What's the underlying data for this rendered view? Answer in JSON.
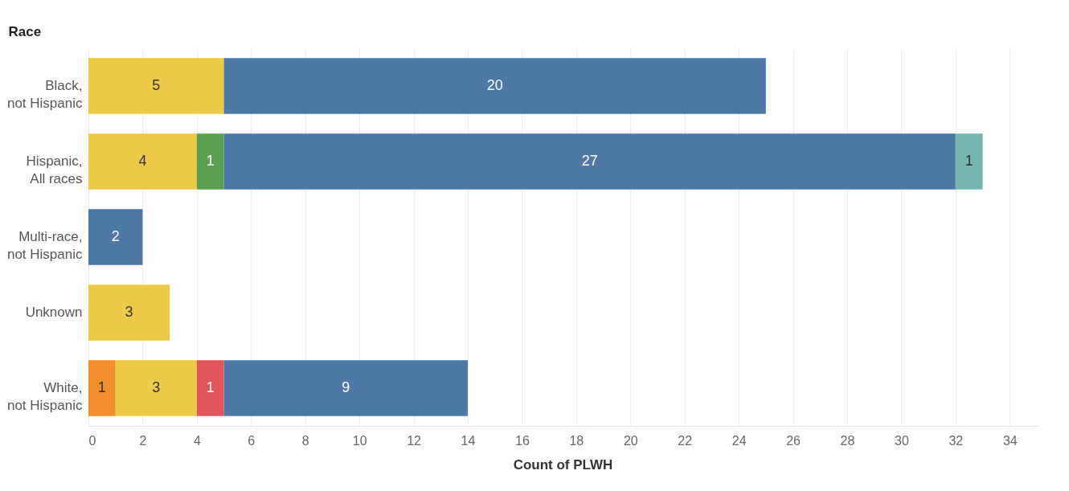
{
  "chart_data": {
    "type": "bar",
    "orientation": "horizontal",
    "stacked": true,
    "data_labels": true,
    "categories": [
      "Black, not Hispanic",
      "Hispanic, All races",
      "Multi-race, not Hispanic",
      "Unknown",
      "White, not Hispanic"
    ],
    "series": [
      {
        "color": "#f28e2b",
        "values": [
          null,
          null,
          null,
          null,
          1
        ]
      },
      {
        "color": "#edc948",
        "values": [
          5,
          4,
          null,
          3,
          3
        ]
      },
      {
        "color": "#e15759",
        "values": [
          null,
          null,
          null,
          null,
          1
        ]
      },
      {
        "color": "#59a14f",
        "values": [
          null,
          1,
          null,
          null,
          null
        ]
      },
      {
        "color": "#4e79a7",
        "values": [
          20,
          27,
          2,
          null,
          9
        ]
      },
      {
        "color": "#76b7b2",
        "values": [
          null,
          1,
          null,
          null,
          null
        ]
      }
    ],
    "xlabel": "Count of PLWH",
    "ylabel": "Race",
    "xlim": [
      0,
      35
    ],
    "xticks": [
      0,
      2,
      4,
      6,
      8,
      10,
      12,
      14,
      16,
      18,
      20,
      22,
      24,
      26,
      28,
      30,
      32,
      34
    ],
    "grid": "x",
    "legend": false
  }
}
